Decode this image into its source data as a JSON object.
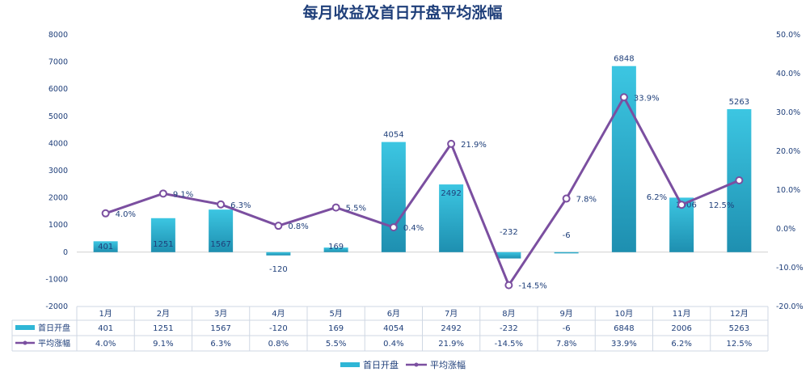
{
  "chart_data": {
    "type": "bar+line",
    "title": "每月收益及首日开盘平均涨幅",
    "categories": [
      "1月",
      "2月",
      "3月",
      "4月",
      "5月",
      "6月",
      "7月",
      "8月",
      "9月",
      "10月",
      "11月",
      "12月"
    ],
    "series": [
      {
        "name": "首日开盘",
        "type": "bar",
        "axis": "left",
        "color": "#2fb6d6",
        "values": [
          401,
          1251,
          1567,
          -120,
          169,
          4054,
          2492,
          -232,
          -6,
          6848,
          2006,
          5263
        ]
      },
      {
        "name": "平均涨幅",
        "type": "line",
        "axis": "right",
        "color": "#7b4fa0",
        "values": [
          4.0,
          9.1,
          6.3,
          0.8,
          5.5,
          0.4,
          21.9,
          -14.5,
          7.8,
          33.9,
          6.2,
          12.5
        ],
        "labels": [
          "4.0%",
          "9.1%",
          "6.3%",
          "0.8%",
          "5.5%",
          "0.4%",
          "21.9%",
          "-14.5%",
          "7.8%",
          "33.9%",
          "6.2%",
          "12.5%"
        ]
      }
    ],
    "y_left": {
      "min": -2000,
      "max": 8000,
      "ticks": [
        "8000",
        "7000",
        "6000",
        "5000",
        "4000",
        "3000",
        "2000",
        "1000",
        "0",
        "-1000",
        "-2000"
      ]
    },
    "y_right": {
      "min": -20,
      "max": 50,
      "ticks": [
        "50.0%",
        "40.0%",
        "30.0%",
        "20.0%",
        "10.0%",
        "0.0%",
        "-10.0%",
        "-20.0%"
      ]
    },
    "legend_position": "bottom",
    "grid": false,
    "data_table": true
  }
}
